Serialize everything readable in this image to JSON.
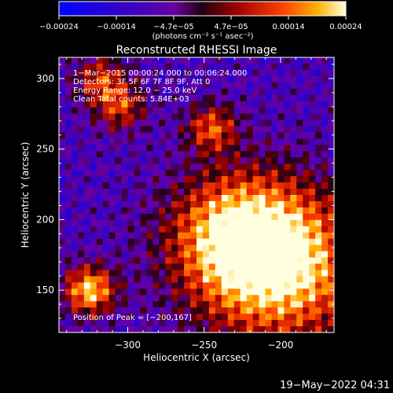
{
  "chart_data": {
    "type": "heatmap",
    "title": "Reconstructed RHESSI Image",
    "xlabel": "Heliocentric X (arcsec)",
    "ylabel": "Heliocentric Y (arcsec)",
    "xlim": [
      -345,
      -165
    ],
    "ylim": [
      120,
      315
    ],
    "x_ticks": [
      -300,
      -250,
      -200
    ],
    "y_ticks": [
      150,
      200,
      250,
      300
    ],
    "x_tick_labels": [
      "−300",
      "−250",
      "−200"
    ],
    "y_tick_labels": [
      "150",
      "200",
      "250",
      "300"
    ],
    "colorbar": {
      "range": [
        -0.00024,
        0.00024
      ],
      "tick_labels": [
        "−0.00024",
        "−0.00014",
        "−4.7e−05",
        "4.7e−05",
        "0.00014",
        "0.00024"
      ],
      "unit_label": "(photons cm⁻² s⁻¹ asec⁻²)"
    },
    "info_lines": [
      "1−Mar−2015 00:00:24.000 to 00:06:24.000",
      "Detectors: 3F 5F 6F 7F 8F 9F, Att 0",
      "Energy Range: 12.0 − 25.0 keV",
      "Clean    Total counts: 5.84E+03"
    ],
    "peak_label": "Position of Peak = [−200,167]",
    "peak": [
      -200,
      167
    ],
    "sources": [
      {
        "x": -200,
        "y": 167,
        "peak": 0.00024
      },
      {
        "x": -325,
        "y": 150,
        "peak": 0.00022
      },
      {
        "x": -230,
        "y": 190,
        "peak": 0.00016
      },
      {
        "x": -245,
        "y": 265,
        "peak": 0.00012
      },
      {
        "x": -305,
        "y": 280,
        "peak": 0.0001
      },
      {
        "x": -318,
        "y": 300,
        "peak": 9e-05
      }
    ]
  },
  "footer": {
    "timestamp": "19−May−2022 04:31"
  }
}
